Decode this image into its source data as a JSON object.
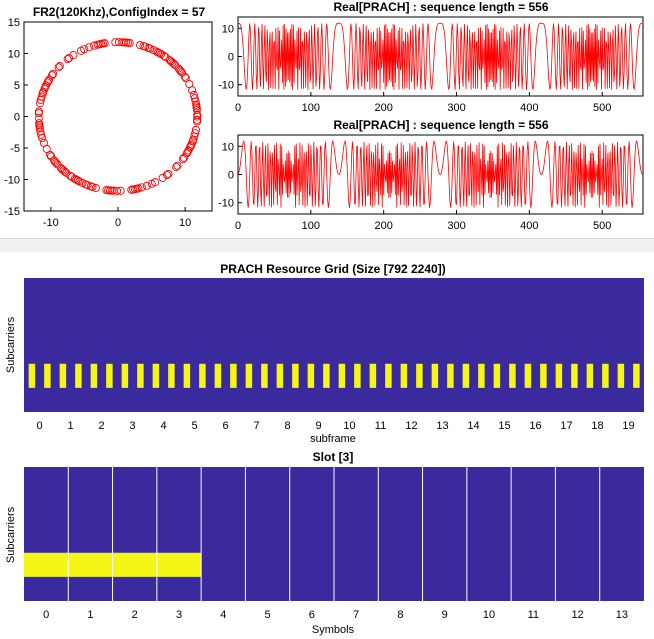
{
  "chart_data": [
    {
      "type": "scatter",
      "title": "FR2(120Khz),ConfigIndex = 57",
      "xlim": [
        -14,
        14
      ],
      "ylim": [
        -15,
        15
      ],
      "xticks": [
        -10,
        0,
        10
      ],
      "yticks": [
        -15,
        -10,
        -5,
        0,
        5,
        10,
        15
      ],
      "marker": "circle",
      "color": "#ff0000",
      "radius": 11.8,
      "n_points": 139
    },
    {
      "type": "line",
      "title": "Real[PRACH] : sequence length = 556",
      "xlim": [
        0,
        556
      ],
      "ylim": [
        -14,
        14
      ],
      "xticks": [
        0,
        100,
        200,
        300,
        400,
        500
      ],
      "yticks": [
        -10,
        0,
        10
      ],
      "color": "#ff0000",
      "amplitude": 11.8,
      "n_points": 556
    },
    {
      "type": "line",
      "title": "Real[PRACH] : sequence length = 556",
      "xlim": [
        0,
        556
      ],
      "ylim": [
        -14,
        14
      ],
      "xticks": [
        0,
        100,
        200,
        300,
        400,
        500
      ],
      "yticks": [
        -10,
        0,
        10
      ],
      "color": "#ff0000",
      "amplitude": 11.8,
      "n_points": 556
    },
    {
      "type": "heatmap",
      "title": "PRACH Resource Grid (Size [792 2240])",
      "xlabel": "subframe",
      "ylabel": "Subcarriers",
      "xticks": [
        0,
        1,
        2,
        3,
        4,
        5,
        6,
        7,
        8,
        9,
        10,
        11,
        12,
        13,
        14,
        15,
        16,
        17,
        18,
        19
      ],
      "background_color": "#3a2a9e",
      "highlight_color": "#f5f516",
      "bar_count": 40,
      "bars_per_subframe": 2,
      "band_y_from": 0.64,
      "band_y_to": 0.82
    },
    {
      "type": "heatmap",
      "title": "Slot [3]",
      "xlabel": "Symbols",
      "ylabel": "Subcarriers",
      "xticks": [
        0,
        1,
        2,
        3,
        4,
        5,
        6,
        7,
        8,
        9,
        10,
        11,
        12,
        13
      ],
      "background_color": "#3a2a9e",
      "highlight_color": "#f5f516",
      "gridline_color": "#ffffff",
      "highlight_symbols": [
        0,
        1,
        2,
        3
      ],
      "band_y_from": 0.64,
      "band_y_to": 0.82
    }
  ]
}
